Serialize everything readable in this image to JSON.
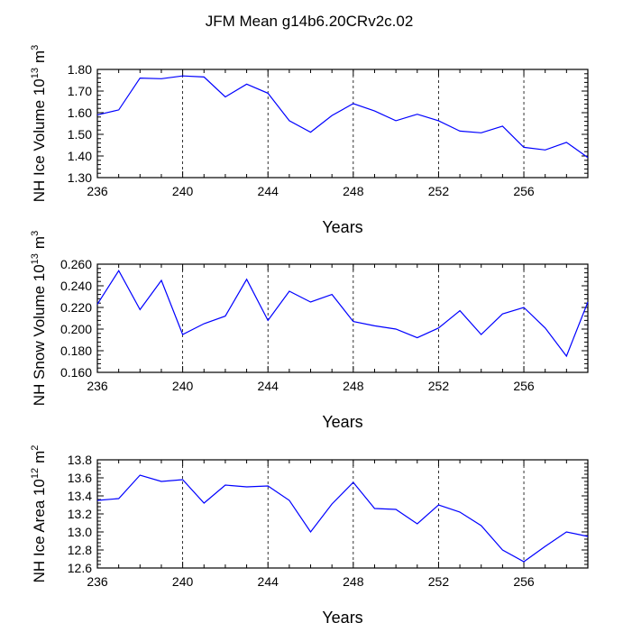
{
  "title": "JFM Mean g14b6.20CRv2c.02",
  "chart_data": [
    {
      "type": "line",
      "ylabel": "NH Ice Volume 10",
      "ylabel_exp": "13",
      "ylabel_unit": "m",
      "ylabel_unit_exp": "3",
      "xlabel": "Years",
      "xlim": [
        236,
        259
      ],
      "ylim": [
        1.3,
        1.8
      ],
      "yticks": [
        "1.30",
        "1.40",
        "1.50",
        "1.60",
        "1.70",
        "1.80"
      ],
      "xticks": [
        "236",
        "240",
        "244",
        "248",
        "252",
        "256"
      ],
      "line_color": "#0000ff",
      "x": [
        236,
        237,
        238,
        239,
        240,
        241,
        242,
        243,
        244,
        245,
        246,
        247,
        248,
        249,
        250,
        251,
        252,
        253,
        254,
        255,
        256,
        257,
        258,
        259
      ],
      "values": [
        1.59,
        1.613,
        1.76,
        1.757,
        1.77,
        1.765,
        1.673,
        1.732,
        1.69,
        1.563,
        1.51,
        1.587,
        1.642,
        1.608,
        1.563,
        1.593,
        1.563,
        1.515,
        1.507,
        1.538,
        1.44,
        1.428,
        1.463,
        1.393
      ]
    },
    {
      "type": "line",
      "ylabel": "NH Snow Volume 10",
      "ylabel_exp": "13",
      "ylabel_unit": "m",
      "ylabel_unit_exp": "3",
      "xlabel": "Years",
      "xlim": [
        236,
        259
      ],
      "ylim": [
        0.16,
        0.26
      ],
      "yticks": [
        "0.160",
        "0.180",
        "0.200",
        "0.220",
        "0.240",
        "0.260"
      ],
      "xticks": [
        "236",
        "240",
        "244",
        "248",
        "252",
        "256"
      ],
      "line_color": "#0000ff",
      "x": [
        236,
        237,
        238,
        239,
        240,
        241,
        242,
        243,
        244,
        245,
        246,
        247,
        248,
        249,
        250,
        251,
        252,
        253,
        254,
        255,
        256,
        257,
        258,
        259
      ],
      "values": [
        0.223,
        0.254,
        0.218,
        0.245,
        0.195,
        0.205,
        0.212,
        0.246,
        0.208,
        0.235,
        0.225,
        0.232,
        0.207,
        0.203,
        0.2,
        0.192,
        0.201,
        0.217,
        0.195,
        0.214,
        0.22,
        0.201,
        0.175,
        0.225
      ]
    },
    {
      "type": "line",
      "ylabel": "NH Ice Area 10",
      "ylabel_exp": "12",
      "ylabel_unit": "m",
      "ylabel_unit_exp": "2",
      "xlabel": "Years",
      "xlim": [
        236,
        259
      ],
      "ylim": [
        12.6,
        13.8
      ],
      "yticks": [
        "12.6",
        "12.8",
        "13.0",
        "13.2",
        "13.4",
        "13.6",
        "13.8"
      ],
      "xticks": [
        "236",
        "240",
        "244",
        "248",
        "252",
        "256"
      ],
      "line_color": "#0000ff",
      "x": [
        236,
        237,
        238,
        239,
        240,
        241,
        242,
        243,
        244,
        245,
        246,
        247,
        248,
        249,
        250,
        251,
        252,
        253,
        254,
        255,
        256,
        257,
        258,
        259
      ],
      "values": [
        13.35,
        13.37,
        13.63,
        13.56,
        13.58,
        13.32,
        13.52,
        13.5,
        13.51,
        13.35,
        13.0,
        13.31,
        13.55,
        13.26,
        13.25,
        13.09,
        13.3,
        13.22,
        13.07,
        12.8,
        12.67,
        12.84,
        13.0,
        12.95
      ]
    }
  ]
}
